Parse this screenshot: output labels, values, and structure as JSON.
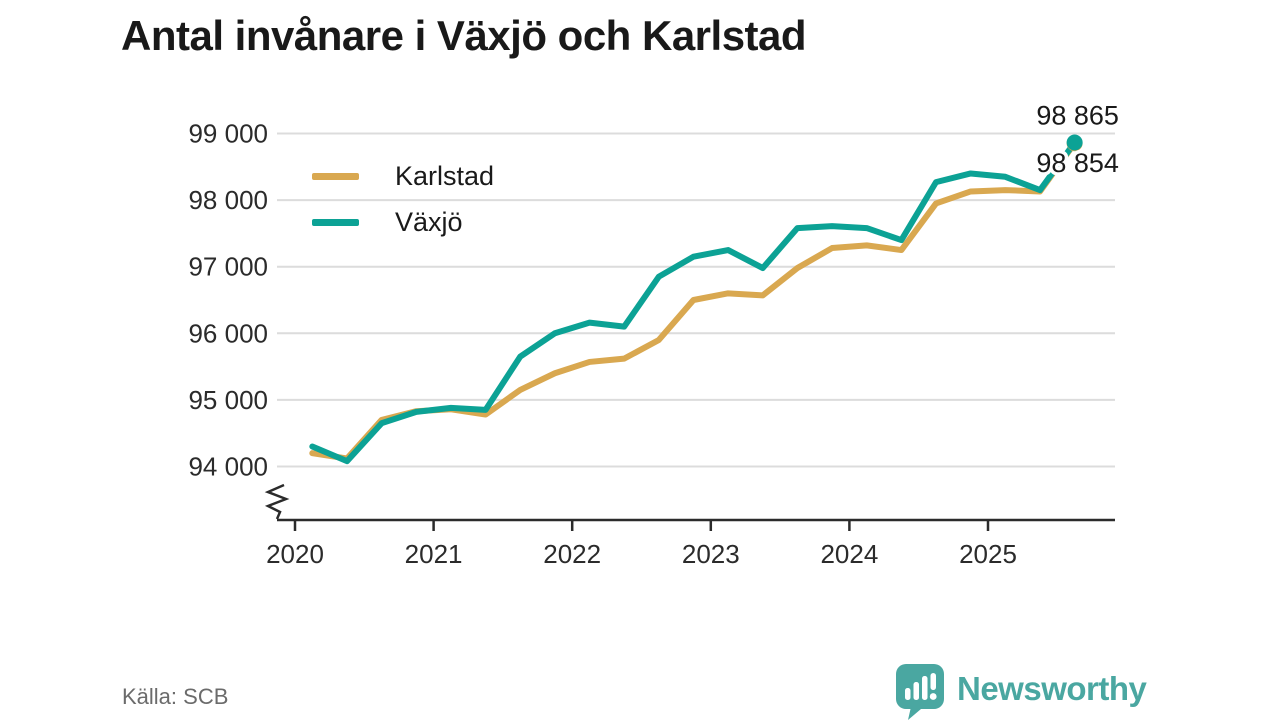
{
  "title": "Antal invånare i Växjö och Karlstad",
  "source": "Källa: SCB",
  "branding": {
    "logo_text": "Newsworthy",
    "logo_color": "#4aa7a1"
  },
  "colors": {
    "karlstad": "#d9a850",
    "vaxjo": "#0ca295",
    "gridline": "#dcdcdc",
    "axis": "#2b2b2b",
    "label_text": "#1a1a1a"
  },
  "chart_data": {
    "type": "line",
    "title": "Antal invånare i Växjö och Karlstad",
    "xlabel": "",
    "ylabel": "",
    "grid": true,
    "legend_position": "top-left",
    "axis_break": true,
    "ylim": [
      93400,
      99000
    ],
    "yticks": [
      {
        "value": 99000,
        "label": "99 000"
      },
      {
        "value": 98000,
        "label": "98 000"
      },
      {
        "value": 97000,
        "label": "97 000"
      },
      {
        "value": 96000,
        "label": "96 000"
      },
      {
        "value": 95000,
        "label": "95 000"
      },
      {
        "value": 94000,
        "label": "94 000"
      }
    ],
    "xticks": [
      "2020",
      "2021",
      "2022",
      "2023",
      "2024",
      "2025"
    ],
    "quarters": [
      "2020-Q1",
      "2020-Q2",
      "2020-Q3",
      "2020-Q4",
      "2021-Q1",
      "2021-Q2",
      "2021-Q3",
      "2021-Q4",
      "2022-Q1",
      "2022-Q2",
      "2022-Q3",
      "2022-Q4",
      "2023-Q1",
      "2023-Q2",
      "2023-Q3",
      "2023-Q4",
      "2024-Q1",
      "2024-Q2",
      "2024-Q3",
      "2024-Q4",
      "2025-Q1",
      "2025-Q2",
      "2025-Q3"
    ],
    "series": [
      {
        "name": "Karlstad",
        "color": "#d9a850",
        "end_label": "98 854",
        "end_value": 98854,
        "values": [
          94200,
          94120,
          94700,
          94830,
          94860,
          94780,
          95150,
          95400,
          95570,
          95620,
          95900,
          96500,
          96600,
          96570,
          96980,
          97280,
          97320,
          97250,
          97950,
          98130,
          98150,
          98130,
          98854
        ]
      },
      {
        "name": "Växjö",
        "color": "#0ca295",
        "end_label": "98 865",
        "end_value": 98865,
        "values": [
          94300,
          94080,
          94650,
          94820,
          94880,
          94850,
          95650,
          96000,
          96160,
          96100,
          96850,
          97150,
          97250,
          96980,
          97580,
          97610,
          97580,
          97400,
          98270,
          98400,
          98350,
          98150,
          98865
        ]
      }
    ]
  }
}
